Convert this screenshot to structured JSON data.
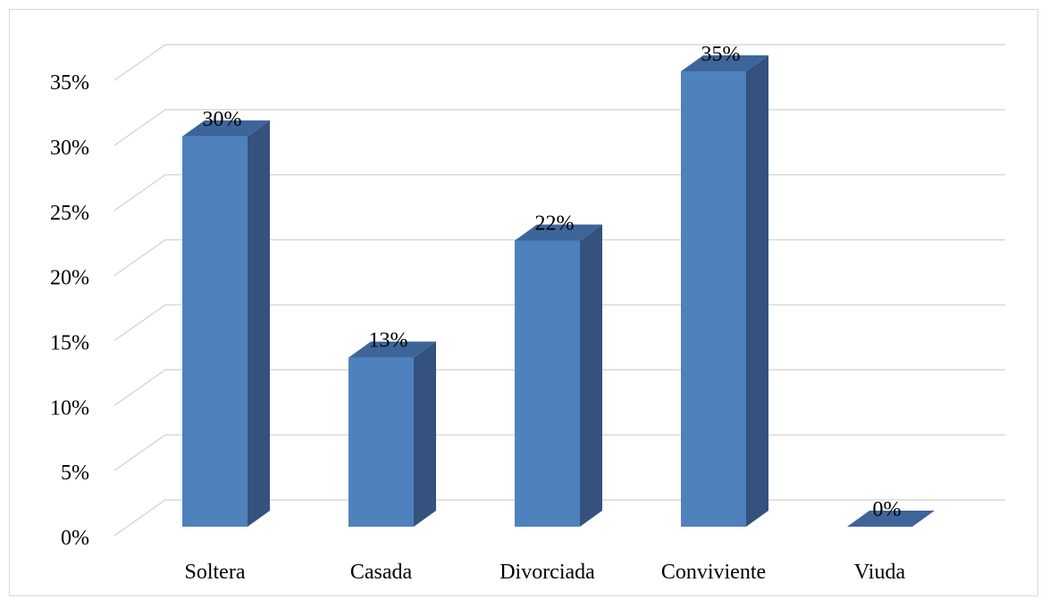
{
  "chart_data": {
    "type": "bar",
    "style": "3d-column",
    "categories": [
      "Soltera",
      "Casada",
      "Divorciada",
      "Conviviente",
      "Viuda"
    ],
    "values": [
      30,
      13,
      22,
      35,
      0
    ],
    "data_labels": [
      "30%",
      "13%",
      "22%",
      "35%",
      "0%"
    ],
    "y_ticks": [
      0,
      5,
      10,
      15,
      20,
      25,
      30,
      35
    ],
    "y_tick_labels": [
      "0%",
      "5%",
      "10%",
      "15%",
      "20%",
      "25%",
      "30%",
      "35%"
    ],
    "ylim": [
      0,
      38
    ],
    "grid": true,
    "legend": "none",
    "colors": {
      "bar_front": "#4f81bd",
      "bar_side": "#34527d",
      "bar_top": "#3d659a",
      "gridline": "#d9d9d9"
    }
  }
}
